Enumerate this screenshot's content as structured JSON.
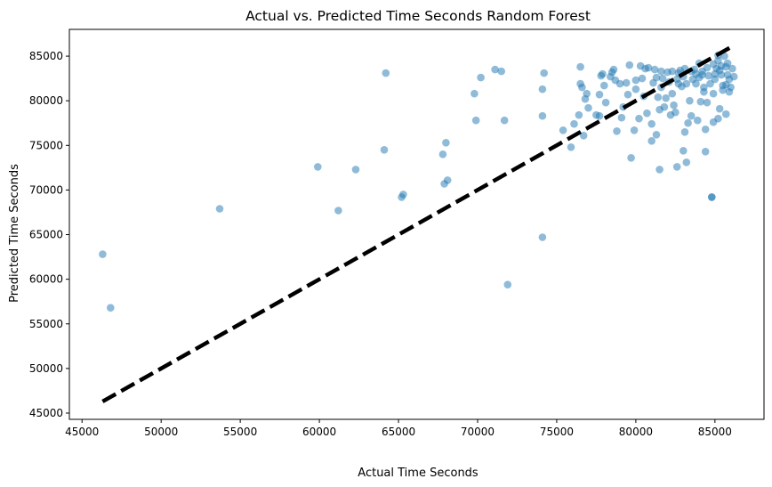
{
  "chart_data": {
    "type": "scatter",
    "title": "Actual vs. Predicted Time Seconds Random Forest",
    "xlabel": "Actual Time Seconds",
    "ylabel": "Predicted Time Seconds",
    "xlim": [
      44200,
      88100
    ],
    "ylim": [
      44300,
      88000
    ],
    "xticks": [
      45000,
      50000,
      55000,
      60000,
      65000,
      70000,
      75000,
      80000,
      85000
    ],
    "yticks": [
      45000,
      50000,
      55000,
      60000,
      65000,
      70000,
      75000,
      80000,
      85000
    ],
    "grid": false,
    "point_color": "#1f77b4",
    "point_alpha": 0.5,
    "reference_line": {
      "style": "dashed",
      "color": "#000000",
      "from": [
        46300,
        46300
      ],
      "to": [
        86200,
        86200
      ]
    },
    "points": [
      [
        46300,
        62800
      ],
      [
        46800,
        56800
      ],
      [
        53700,
        67900
      ],
      [
        59900,
        72600
      ],
      [
        61200,
        67700
      ],
      [
        62300,
        72300
      ],
      [
        64100,
        74500
      ],
      [
        64200,
        83100
      ],
      [
        65200,
        69200
      ],
      [
        65300,
        69500
      ],
      [
        67800,
        74000
      ],
      [
        67900,
        70700
      ],
      [
        68000,
        75300
      ],
      [
        68100,
        71100
      ],
      [
        69800,
        80800
      ],
      [
        69900,
        77800
      ],
      [
        70200,
        82600
      ],
      [
        71100,
        83500
      ],
      [
        71500,
        83300
      ],
      [
        71700,
        77800
      ],
      [
        71900,
        59400
      ],
      [
        74100,
        64700
      ],
      [
        74100,
        78300
      ],
      [
        74100,
        81300
      ],
      [
        74200,
        83100
      ],
      [
        75400,
        76700
      ],
      [
        75900,
        74800
      ],
      [
        76100,
        77400
      ],
      [
        76400,
        78400
      ],
      [
        76500,
        83800
      ],
      [
        76500,
        81900
      ],
      [
        76600,
        81500
      ],
      [
        76700,
        76100
      ],
      [
        76800,
        80200
      ],
      [
        76900,
        80800
      ],
      [
        77000,
        79200
      ],
      [
        77500,
        78400
      ],
      [
        77700,
        78300
      ],
      [
        77700,
        80700
      ],
      [
        77800,
        82800
      ],
      [
        77900,
        83000
      ],
      [
        78000,
        81700
      ],
      [
        78100,
        79800
      ],
      [
        78400,
        82700
      ],
      [
        78500,
        83200
      ],
      [
        78600,
        83500
      ],
      [
        78700,
        82300
      ],
      [
        78800,
        76600
      ],
      [
        79000,
        81900
      ],
      [
        79100,
        78100
      ],
      [
        79200,
        79300
      ],
      [
        79400,
        82000
      ],
      [
        79500,
        80700
      ],
      [
        79600,
        84000
      ],
      [
        79700,
        73600
      ],
      [
        79900,
        76700
      ],
      [
        80000,
        82300
      ],
      [
        80000,
        81300
      ],
      [
        80200,
        78000
      ],
      [
        80300,
        83900
      ],
      [
        80400,
        82500
      ],
      [
        80500,
        80500
      ],
      [
        80600,
        83600
      ],
      [
        80700,
        78600
      ],
      [
        80800,
        83700
      ],
      [
        81000,
        77400
      ],
      [
        81000,
        75500
      ],
      [
        81100,
        82000
      ],
      [
        81200,
        83500
      ],
      [
        81300,
        82600
      ],
      [
        81300,
        76200
      ],
      [
        81400,
        80400
      ],
      [
        81500,
        79000
      ],
      [
        81500,
        72300
      ],
      [
        81600,
        83300
      ],
      [
        81600,
        81500
      ],
      [
        81700,
        82500
      ],
      [
        81800,
        79300
      ],
      [
        81900,
        80300
      ],
      [
        82000,
        83200
      ],
      [
        82100,
        82100
      ],
      [
        82200,
        78400
      ],
      [
        82300,
        80800
      ],
      [
        82300,
        83300
      ],
      [
        82400,
        79500
      ],
      [
        82500,
        78700
      ],
      [
        82600,
        82400
      ],
      [
        82600,
        72600
      ],
      [
        82700,
        81900
      ],
      [
        82700,
        83100
      ],
      [
        82800,
        83400
      ],
      [
        82900,
        81600
      ],
      [
        83000,
        74400
      ],
      [
        83000,
        82700
      ],
      [
        83100,
        76500
      ],
      [
        83100,
        83600
      ],
      [
        83200,
        81900
      ],
      [
        83200,
        73100
      ],
      [
        83300,
        77500
      ],
      [
        83400,
        80000
      ],
      [
        83500,
        83300
      ],
      [
        83500,
        78300
      ],
      [
        83600,
        82400
      ],
      [
        83700,
        83500
      ],
      [
        83800,
        81900
      ],
      [
        83900,
        77800
      ],
      [
        84000,
        82600
      ],
      [
        84000,
        84200
      ],
      [
        84100,
        79900
      ],
      [
        84200,
        82900
      ],
      [
        84300,
        81500
      ],
      [
        84300,
        81000
      ],
      [
        84400,
        74300
      ],
      [
        84400,
        76800
      ],
      [
        84500,
        83700
      ],
      [
        84500,
        79800
      ],
      [
        84600,
        82800
      ],
      [
        84700,
        81900
      ],
      [
        84800,
        69200
      ],
      [
        84800,
        69200
      ],
      [
        84900,
        84100
      ],
      [
        84900,
        80800
      ],
      [
        84900,
        77600
      ],
      [
        85000,
        82400
      ],
      [
        85100,
        83600
      ],
      [
        85200,
        78000
      ],
      [
        85200,
        85100
      ],
      [
        85200,
        84500
      ],
      [
        85300,
        83400
      ],
      [
        85300,
        79100
      ],
      [
        85400,
        82900
      ],
      [
        85500,
        81700
      ],
      [
        85500,
        81200
      ],
      [
        85600,
        85000
      ],
      [
        85700,
        78500
      ],
      [
        85700,
        81800
      ],
      [
        85700,
        83800
      ],
      [
        85800,
        84200
      ],
      [
        85900,
        81000
      ],
      [
        85900,
        82400
      ],
      [
        86000,
        81500
      ],
      [
        86100,
        83600
      ],
      [
        86200,
        82700
      ],
      [
        85000,
        83000
      ],
      [
        83800,
        83000
      ],
      [
        84200,
        83300
      ],
      [
        85400,
        83900
      ],
      [
        85800,
        82900
      ]
    ]
  }
}
